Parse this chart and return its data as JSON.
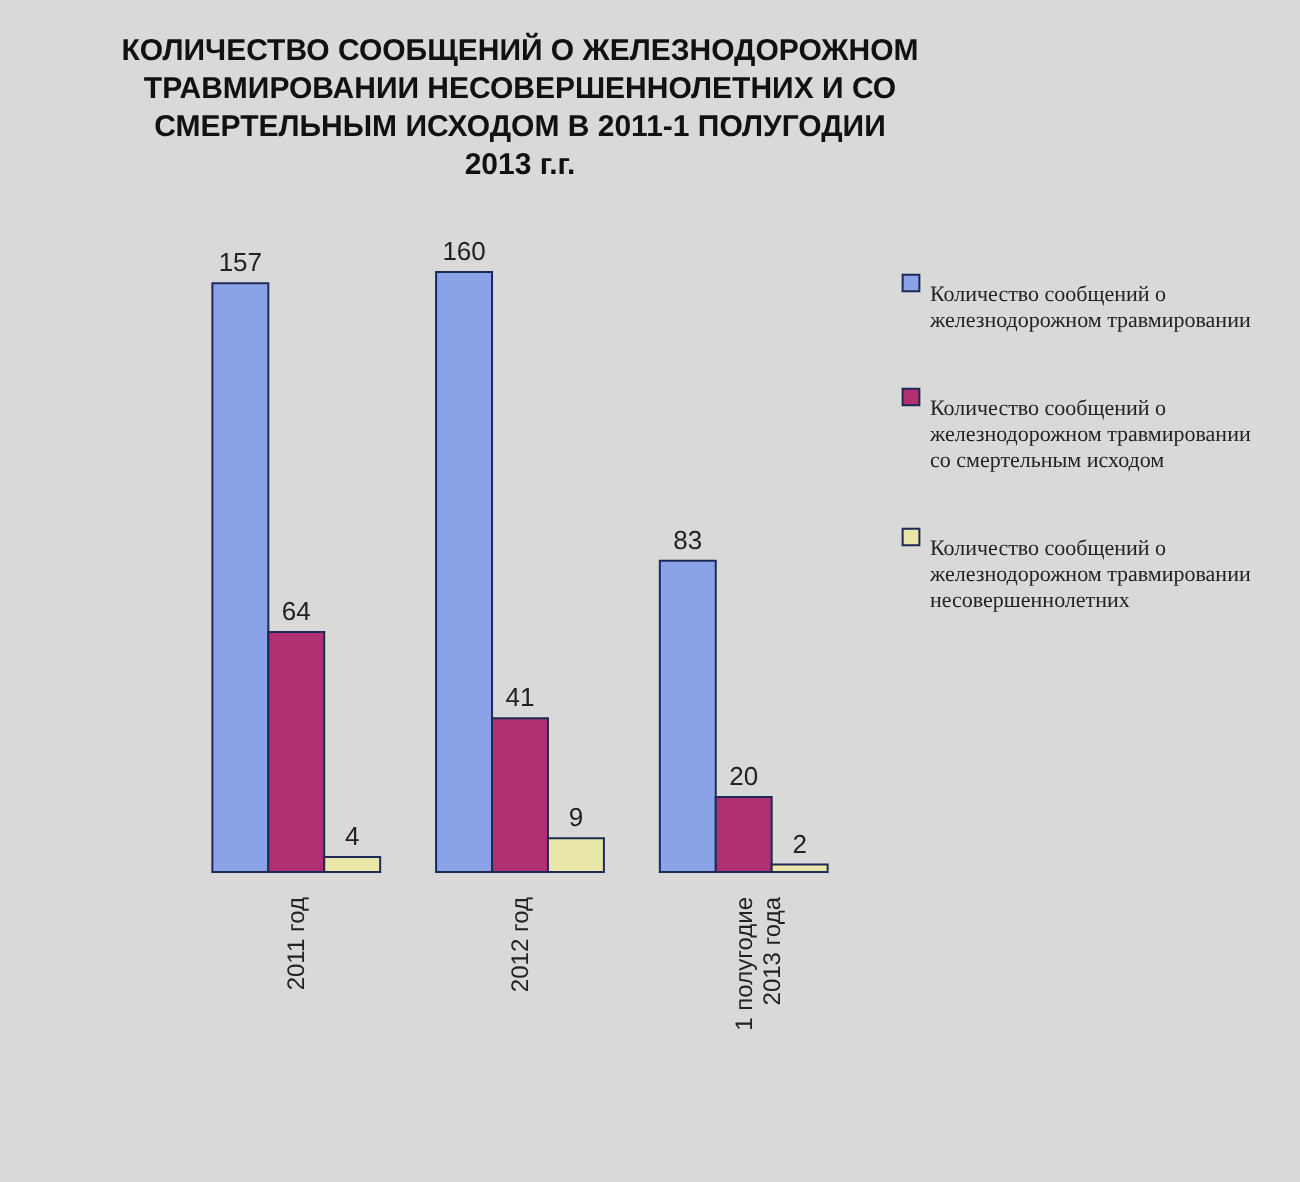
{
  "chart_data": {
    "type": "bar",
    "title": "КОЛИЧЕСТВО СООБЩЕНИЙ О ЖЕЛЕЗНОДОРОЖНОМ ТРАВМИРОВАНИИ НЕСОВЕРШЕННОЛЕТНИХ И СО СМЕРТЕЛЬНЫМ ИСХОДОМ В 2011-1 ПОЛУГОДИИ 2013 г.г.",
    "categories": [
      "2011 год",
      "2012 год",
      "1 полугодие 2013 года"
    ],
    "series": [
      {
        "name": "Количество сообщений о железнодорожном травмировании",
        "color": "#8aa3e8",
        "values": [
          157,
          160,
          83
        ]
      },
      {
        "name": "Количество сообщений о железнодорожном травмировании со смертельным исходом",
        "color": "#b02f70",
        "values": [
          64,
          41,
          20
        ]
      },
      {
        "name": "Количество сообщений о железнодорожном травмировании несовершеннолетних",
        "color": "#e8e6a8",
        "values": [
          4,
          9,
          2
        ]
      }
    ],
    "data_labels": true,
    "legend": "right"
  }
}
